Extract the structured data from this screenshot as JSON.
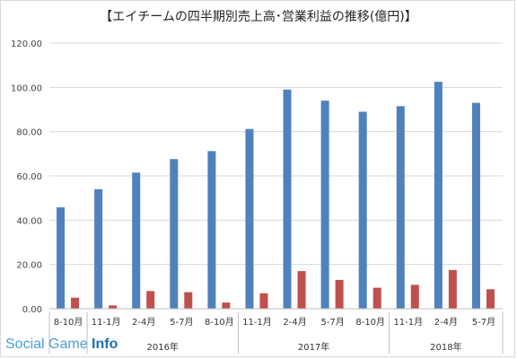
{
  "chart_data": {
    "type": "bar",
    "title": "【エイチームの四半期別売上高･営業利益の推移(億円)】",
    "categories": [
      "8-10月",
      "11-1月",
      "2-4月",
      "5-7月",
      "8-10月",
      "11-1月",
      "2-4月",
      "5-7月",
      "8-10月",
      "11-1月",
      "2-4月",
      "5-7月"
    ],
    "groups": [
      {
        "label": "2016年",
        "start": 1,
        "end": 4
      },
      {
        "label": "2017年",
        "start": 5,
        "end": 8
      },
      {
        "label": "2018年",
        "start": 9,
        "end": 11
      }
    ],
    "series": [
      {
        "values": [
          45.8,
          54.0,
          61.5,
          67.6,
          71.2,
          81.2,
          99.0,
          94.0,
          89.0,
          91.5,
          102.5,
          93.0
        ],
        "color": "#4f81bd"
      },
      {
        "values": [
          5.0,
          1.5,
          8.0,
          7.5,
          2.8,
          7.0,
          17.0,
          13.0,
          9.5,
          10.8,
          17.5,
          8.8
        ],
        "color": "#c0504d"
      }
    ],
    "yticks": [
      "0.00",
      "20.00",
      "40.00",
      "60.00",
      "80.00",
      "100.00",
      "120.00"
    ],
    "ylim": [
      0,
      120
    ],
    "grid": true
  },
  "watermark": {
    "part1": "Social Game ",
    "part2": "Info"
  }
}
